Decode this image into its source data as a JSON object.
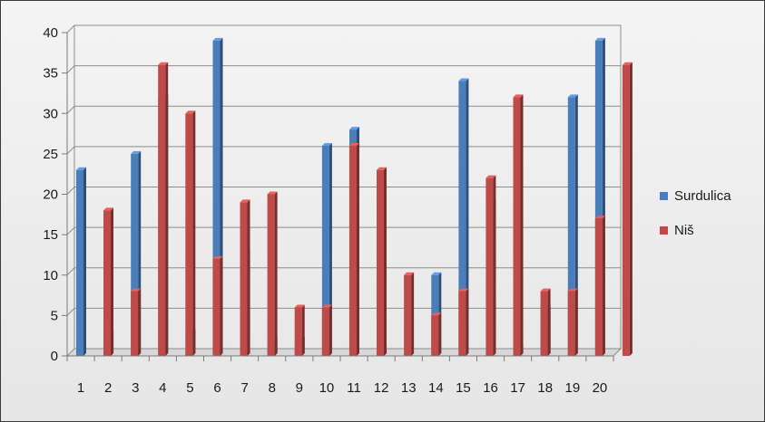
{
  "chart_data": {
    "type": "bar",
    "categories": [
      "1",
      "2",
      "3",
      "4",
      "5",
      "6",
      "7",
      "8",
      "9",
      "10",
      "11",
      "12",
      "13",
      "14",
      "15",
      "16",
      "17",
      "18",
      "19",
      "20"
    ],
    "series": [
      {
        "name": "Surdulica",
        "color": "#4a7ebb",
        "values": [
          23,
          3,
          25,
          32,
          3,
          39,
          13,
          2,
          2,
          26,
          28,
          1,
          0,
          10,
          34,
          19,
          1,
          6,
          32,
          39
        ]
      },
      {
        "name": "Niš",
        "color": "#be4b48",
        "values": [
          18,
          8,
          36,
          30,
          12,
          19,
          20,
          6,
          6,
          26,
          23,
          10,
          5,
          8,
          22,
          32,
          8,
          8,
          17,
          36
        ]
      }
    ],
    "yticks": [
      "0",
      "5",
      "10",
      "15",
      "20",
      "25",
      "30",
      "35",
      "40"
    ],
    "ylim": [
      0,
      40
    ],
    "grid": true,
    "legend_position": "right"
  }
}
